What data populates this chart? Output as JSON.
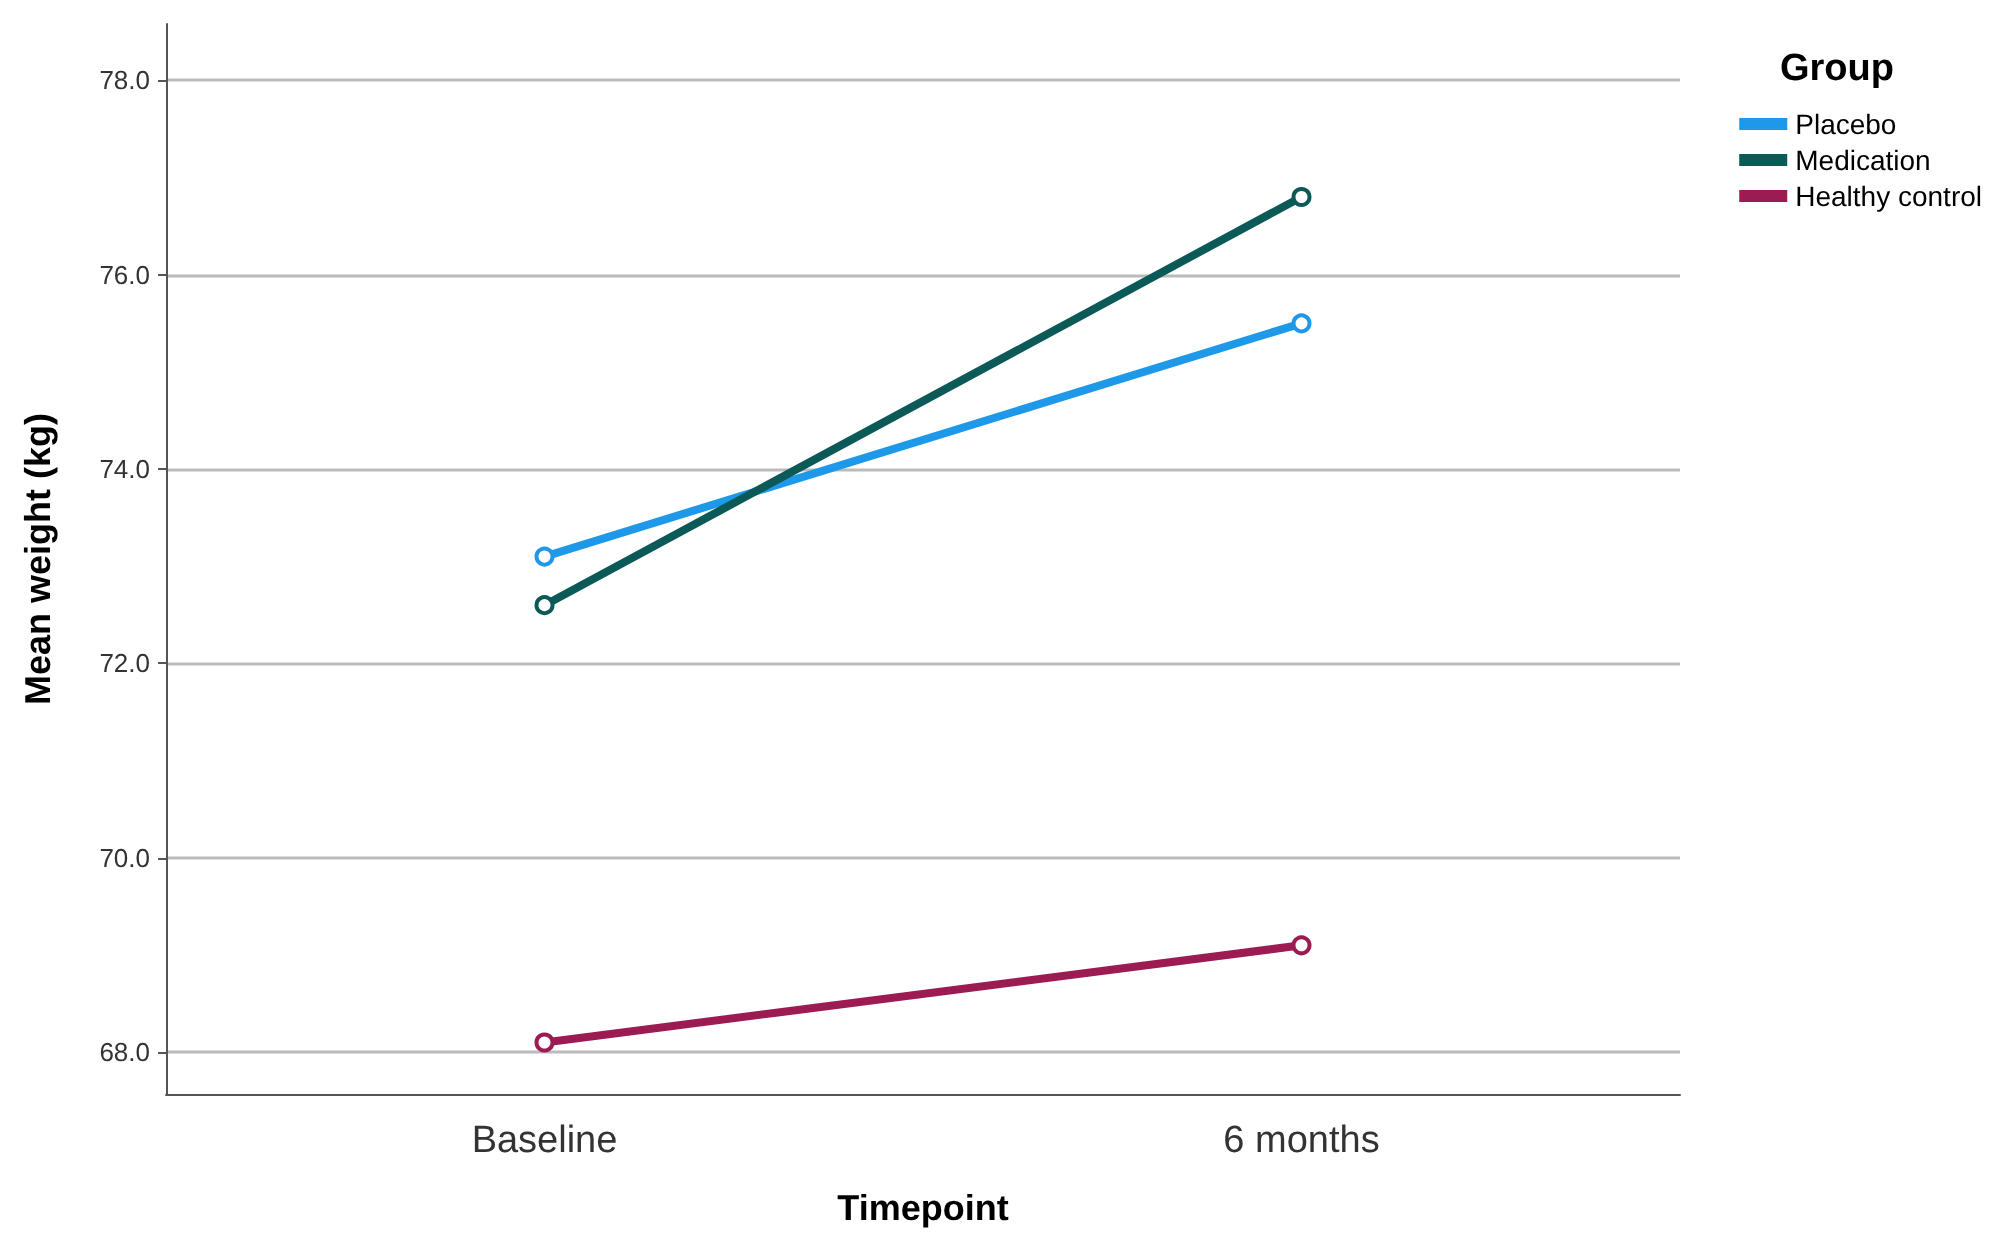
{
  "chart_data": {
    "type": "line",
    "xlabel": "Timepoint",
    "ylabel": "Mean weight (kg)",
    "legend_title": "Group",
    "categories": [
      "Baseline",
      "6 months"
    ],
    "series": [
      {
        "name": "Placebo",
        "color": "#1e98e8",
        "values": [
          73.1,
          75.5
        ]
      },
      {
        "name": "Medication",
        "color": "#0b5a57",
        "values": [
          72.6,
          76.8
        ]
      },
      {
        "name": "Healthy control",
        "color": "#9b1b52",
        "values": [
          68.1,
          69.1
        ]
      }
    ],
    "ylim": [
      67.57,
      78.58
    ],
    "yticks": [
      {
        "value": 68,
        "label": "68.0"
      },
      {
        "value": 70,
        "label": "70.0"
      },
      {
        "value": 72,
        "label": "72.0"
      },
      {
        "value": 74,
        "label": "74.0"
      },
      {
        "value": 76,
        "label": "76.0"
      },
      {
        "value": 78,
        "label": "78.0"
      }
    ],
    "grid": "y",
    "legend": "top right",
    "marker": "circle",
    "line_style": "solid"
  }
}
